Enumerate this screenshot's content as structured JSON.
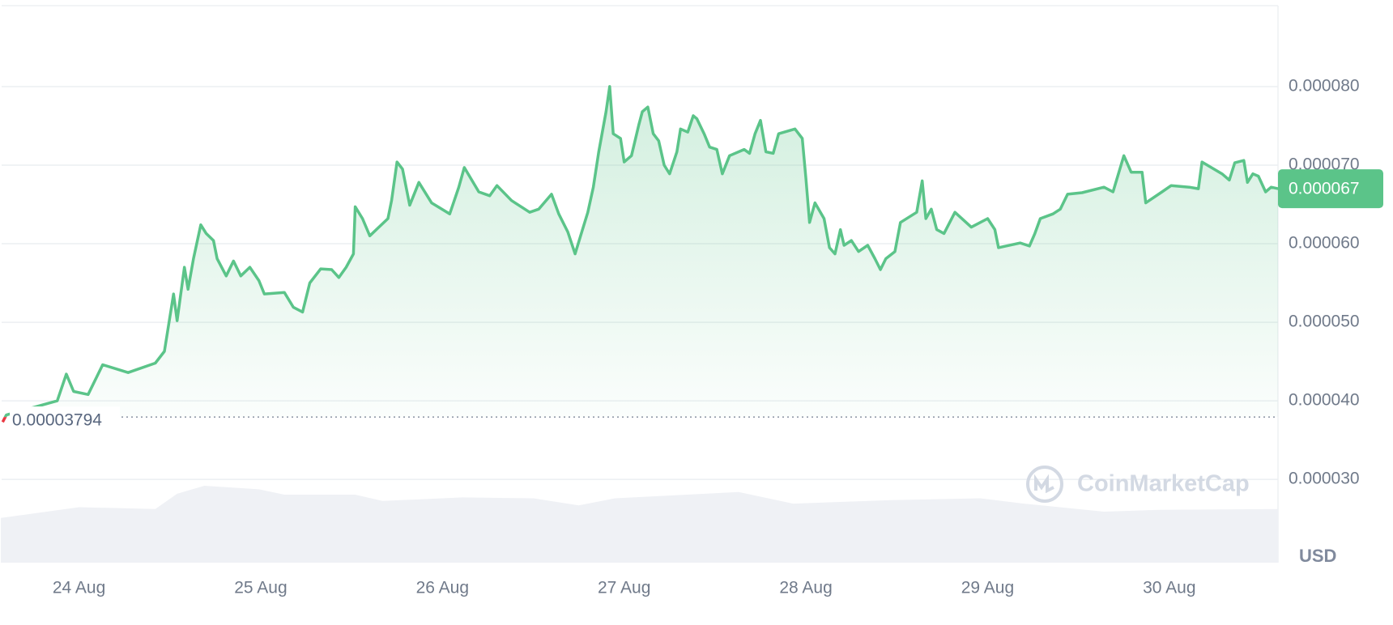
{
  "chart_data": {
    "type": "line",
    "color": "#5bc489",
    "down_color": "#ea3943",
    "baseline": 3.794e-05,
    "last_price": 6.7e-05,
    "unit": "USD",
    "watermark": "CoinMarketCap",
    "grid": true,
    "xlim": [
      23.574,
      30.598
    ],
    "ylim": [
      1.94e-05,
      9.03e-05
    ],
    "xticks": [
      {
        "value": 24,
        "label": "24 Aug"
      },
      {
        "value": 25,
        "label": "25 Aug"
      },
      {
        "value": 26,
        "label": "26 Aug"
      },
      {
        "value": 27,
        "label": "27 Aug"
      },
      {
        "value": 28,
        "label": "28 Aug"
      },
      {
        "value": 29,
        "label": "29 Aug"
      },
      {
        "value": 30,
        "label": "30 Aug"
      }
    ],
    "yticks": [
      {
        "value": 3e-05,
        "label": "0.000030"
      },
      {
        "value": 4e-05,
        "label": "0.000040"
      },
      {
        "value": 5e-05,
        "label": "0.000050"
      },
      {
        "value": 6e-05,
        "label": "0.000060"
      },
      {
        "value": 7e-05,
        "label": "0.000070"
      },
      {
        "value": 8e-05,
        "label": "0.000080"
      }
    ],
    "x": [
      23.58,
      23.6,
      23.88,
      23.93,
      23.97,
      24.05,
      24.13,
      24.27,
      24.42,
      24.47,
      24.52,
      24.54,
      24.58,
      24.6,
      24.63,
      24.67,
      24.7,
      24.74,
      24.76,
      24.81,
      24.85,
      24.89,
      24.94,
      24.99,
      25.02,
      25.13,
      25.18,
      25.23,
      25.27,
      25.33,
      25.39,
      25.43,
      25.47,
      25.51,
      25.52,
      25.56,
      25.6,
      25.65,
      25.7,
      25.72,
      25.75,
      25.78,
      25.82,
      25.87,
      25.94,
      26.04,
      26.09,
      26.12,
      26.2,
      26.26,
      26.3,
      26.38,
      26.48,
      26.53,
      26.6,
      26.64,
      26.69,
      26.73,
      26.76,
      26.8,
      26.83,
      26.86,
      26.9,
      26.92,
      26.94,
      26.98,
      27.0,
      27.04,
      27.08,
      27.1,
      27.13,
      27.16,
      27.19,
      27.22,
      27.25,
      27.29,
      27.31,
      27.35,
      27.38,
      27.4,
      27.44,
      27.47,
      27.51,
      27.54,
      27.58,
      27.66,
      27.69,
      27.72,
      27.75,
      27.78,
      27.82,
      27.85,
      27.94,
      27.98,
      28.0,
      28.02,
      28.05,
      28.1,
      28.13,
      28.16,
      28.19,
      28.21,
      28.25,
      28.29,
      28.34,
      28.38,
      28.41,
      28.44,
      28.49,
      28.52,
      28.61,
      28.64,
      28.66,
      28.69,
      28.72,
      28.76,
      28.82,
      28.91,
      29.0,
      29.04,
      29.06,
      29.18,
      29.23,
      29.26,
      29.29,
      29.36,
      29.4,
      29.44,
      29.52,
      29.64,
      29.69,
      29.75,
      29.79,
      29.85,
      29.87,
      29.96,
      30.01,
      30.11,
      30.16,
      30.18,
      30.29,
      30.33,
      30.36,
      30.41,
      30.43,
      30.46,
      30.49,
      30.53,
      30.56,
      30.6
    ],
    "values": [
      3.73e-05,
      3.82e-05,
      4e-05,
      4.34e-05,
      4.12e-05,
      4.08e-05,
      4.46e-05,
      4.36e-05,
      4.48e-05,
      4.63e-05,
      5.36e-05,
      5.02e-05,
      5.7e-05,
      5.42e-05,
      5.81e-05,
      6.24e-05,
      6.13e-05,
      6.04e-05,
      5.81e-05,
      5.59e-05,
      5.78e-05,
      5.59e-05,
      5.7e-05,
      5.53e-05,
      5.36e-05,
      5.38e-05,
      5.19e-05,
      5.13e-05,
      5.5e-05,
      5.68e-05,
      5.67e-05,
      5.57e-05,
      5.7e-05,
      5.87e-05,
      6.47e-05,
      6.32e-05,
      6.1e-05,
      6.21e-05,
      6.32e-05,
      6.55e-05,
      7.04e-05,
      6.95e-05,
      6.49e-05,
      6.78e-05,
      6.52e-05,
      6.38e-05,
      6.72e-05,
      6.97e-05,
      6.66e-05,
      6.61e-05,
      6.74e-05,
      6.55e-05,
      6.4e-05,
      6.44e-05,
      6.63e-05,
      6.38e-05,
      6.15e-05,
      5.87e-05,
      6.1e-05,
      6.4e-05,
      6.72e-05,
      7.17e-05,
      7.68e-05,
      8e-05,
      7.4e-05,
      7.34e-05,
      7.04e-05,
      7.12e-05,
      7.51e-05,
      7.68e-05,
      7.74e-05,
      7.4e-05,
      7.31e-05,
      7e-05,
      6.89e-05,
      7.17e-05,
      7.46e-05,
      7.42e-05,
      7.63e-05,
      7.59e-05,
      7.4e-05,
      7.23e-05,
      7.2e-05,
      6.89e-05,
      7.12e-05,
      7.2e-05,
      7.15e-05,
      7.4e-05,
      7.57e-05,
      7.17e-05,
      7.15e-05,
      7.4e-05,
      7.46e-05,
      7.34e-05,
      6.83e-05,
      6.27e-05,
      6.52e-05,
      6.32e-05,
      5.95e-05,
      5.87e-05,
      6.18e-05,
      5.98e-05,
      6.04e-05,
      5.9e-05,
      5.98e-05,
      5.81e-05,
      5.67e-05,
      5.81e-05,
      5.9e-05,
      6.27e-05,
      6.4e-05,
      6.8e-05,
      6.32e-05,
      6.44e-05,
      6.18e-05,
      6.13e-05,
      6.4e-05,
      6.21e-05,
      6.32e-05,
      6.18e-05,
      5.95e-05,
      6.01e-05,
      5.97e-05,
      6.13e-05,
      6.32e-05,
      6.38e-05,
      6.44e-05,
      6.63e-05,
      6.65e-05,
      6.72e-05,
      6.66e-05,
      7.12e-05,
      6.91e-05,
      6.91e-05,
      6.52e-05,
      6.66e-05,
      6.74e-05,
      6.72e-05,
      6.7e-05,
      7.04e-05,
      6.89e-05,
      6.81e-05,
      7.03e-05,
      7.06e-05,
      6.78e-05,
      6.89e-05,
      6.86e-05,
      6.66e-05,
      6.72e-05,
      6.7e-05
    ],
    "volume": {
      "x": [
        23.57,
        24.0,
        24.42,
        24.54,
        24.69,
        24.99,
        25.13,
        25.52,
        25.67,
        26.11,
        26.5,
        26.75,
        26.95,
        27.63,
        27.93,
        28.47,
        28.96,
        29.2,
        29.64,
        29.94,
        30.6
      ],
      "values": [
        50,
        62,
        60,
        77,
        86,
        82,
        76,
        76,
        69,
        73,
        72,
        64,
        72,
        79,
        66,
        70,
        72,
        66,
        57,
        59,
        60
      ]
    }
  }
}
